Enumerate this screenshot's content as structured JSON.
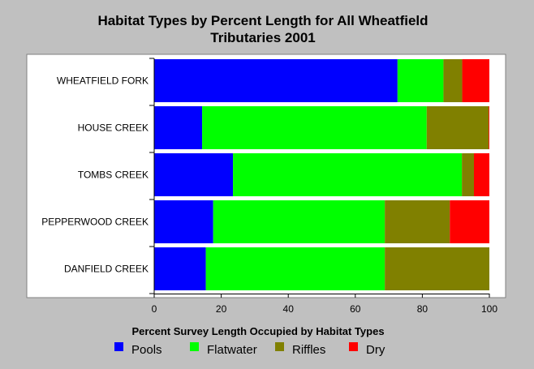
{
  "chart_data": {
    "type": "bar",
    "orientation": "horizontal",
    "stacked": true,
    "title_lines": [
      "Habitat Types by Percent Length for All Wheatfield",
      "Tributaries 2001"
    ],
    "xlabel": "Percent Survey Length Occupied by Habitat Types",
    "ylabel": "",
    "xlim": [
      0,
      100
    ],
    "xticks": [
      0,
      20,
      40,
      60,
      80,
      100
    ],
    "grid": false,
    "legend_position": "bottom",
    "categories": [
      "WHEATFIELD FORK",
      "HOUSE CREEK",
      "TOMBS CREEK",
      "PEPPERWOOD CREEK",
      "DANFIELD CREEK"
    ],
    "series": [
      {
        "name": "Pools",
        "color": "#0000ff",
        "values": [
          72.6,
          14.3,
          23.5,
          17.6,
          15.4
        ]
      },
      {
        "name": "Flatwater",
        "color": "#00ff00",
        "values": [
          13.7,
          67.0,
          68.3,
          51.2,
          53.4
        ]
      },
      {
        "name": "Riffles",
        "color": "#808000",
        "values": [
          5.6,
          18.5,
          3.6,
          19.4,
          31.2
        ]
      },
      {
        "name": "Dry",
        "color": "#ff0000",
        "values": [
          8.1,
          0.2,
          4.6,
          11.8,
          0.0
        ]
      }
    ]
  }
}
